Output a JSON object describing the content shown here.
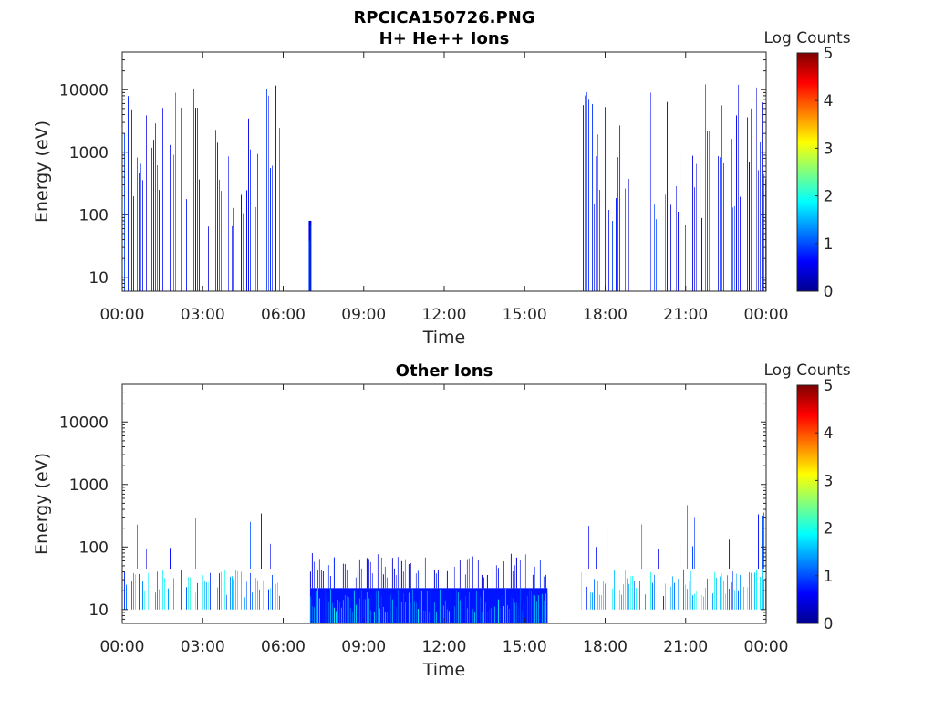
{
  "figure": {
    "title": "RPCICA150726.PNG"
  },
  "chart_data": [
    {
      "type": "heatmap",
      "title": "H+ He++ Ions",
      "xlabel": "Time",
      "ylabel": "Energy (eV)",
      "x_ticks": [
        "00:00",
        "03:00",
        "06:00",
        "09:00",
        "12:00",
        "15:00",
        "18:00",
        "21:00",
        "00:00"
      ],
      "xlim_hours": [
        0,
        24
      ],
      "y_scale": "log",
      "y_ticks": [
        "10",
        "100",
        "1000",
        "10000"
      ],
      "ylim": [
        6,
        40000
      ],
      "colorbar": {
        "label": "Log Counts",
        "ticks": [
          "0",
          "1",
          "2",
          "3",
          "4",
          "5"
        ],
        "range": [
          0,
          5
        ],
        "colormap": "jet"
      },
      "regions": [
        {
          "t_start": 0.0,
          "t_end": 5.9,
          "e_min": 6,
          "e_max": 15000,
          "level": 0.4,
          "density": 0.55
        },
        {
          "t_start": 6.95,
          "t_end": 7.05,
          "e_min": 6,
          "e_max": 80,
          "level": 0.6,
          "density": 1.0
        },
        {
          "t_start": 17.1,
          "t_end": 24.0,
          "e_min": 6,
          "e_max": 15000,
          "level": 0.4,
          "density": 0.55
        }
      ]
    },
    {
      "type": "heatmap",
      "title": "Other Ions",
      "xlabel": "Time",
      "ylabel": "Energy (eV)",
      "x_ticks": [
        "00:00",
        "03:00",
        "06:00",
        "09:00",
        "12:00",
        "15:00",
        "18:00",
        "21:00",
        "00:00"
      ],
      "xlim_hours": [
        0,
        24
      ],
      "y_scale": "log",
      "y_ticks": [
        "10",
        "100",
        "1000",
        "10000"
      ],
      "ylim": [
        6,
        40000
      ],
      "colorbar": {
        "label": "Log Counts",
        "ticks": [
          "0",
          "1",
          "2",
          "3",
          "4",
          "5"
        ],
        "range": [
          0,
          5
        ],
        "colormap": "jet"
      },
      "regions": [
        {
          "t_start": 0.0,
          "t_end": 5.9,
          "e_min": 10,
          "e_max": 45,
          "level": 0.9,
          "density": 0.7
        },
        {
          "t_start": 0.0,
          "t_end": 5.9,
          "e_min": 45,
          "e_max": 500,
          "level": 0.5,
          "density": 0.08
        },
        {
          "t_start": 7.0,
          "t_end": 15.85,
          "e_min": 6,
          "e_max": 22,
          "level": 0.85,
          "density": 1.0
        },
        {
          "t_start": 7.0,
          "t_end": 15.85,
          "e_min": 22,
          "e_max": 80,
          "level": 0.35,
          "density": 0.5
        },
        {
          "t_start": 17.1,
          "t_end": 24.0,
          "e_min": 10,
          "e_max": 45,
          "level": 0.9,
          "density": 0.7
        },
        {
          "t_start": 17.1,
          "t_end": 24.0,
          "e_min": 45,
          "e_max": 500,
          "level": 0.5,
          "density": 0.08
        }
      ]
    }
  ]
}
